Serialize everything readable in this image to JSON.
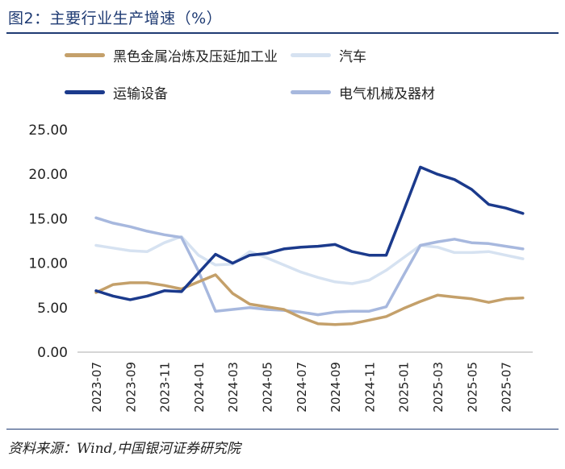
{
  "header": {
    "title": "图2：主要行业生产增速（%）"
  },
  "footer": {
    "source": "资料来源：Wind,中国银河证券研究院"
  },
  "chart_data": {
    "type": "line",
    "title": "图2：主要行业生产增速（%）",
    "x": [
      "2023-07",
      "2023-08",
      "2023-09",
      "2023-10",
      "2023-11",
      "2023-12",
      "2024-01",
      "2024-02",
      "2024-03",
      "2024-04",
      "2024-05",
      "2024-06",
      "2024-07",
      "2024-08",
      "2024-09",
      "2024-10",
      "2024-11",
      "2024-12",
      "2025-01",
      "2025-02",
      "2025-03",
      "2025-04",
      "2025-05",
      "2025-06",
      "2025-07",
      "2025-08"
    ],
    "x_tick_labels": [
      "2023-07",
      "2023-09",
      "2023-11",
      "2024-01",
      "2024-03",
      "2024-05",
      "2024-07",
      "2024-09",
      "2024-11",
      "2025-01",
      "2025-03",
      "2025-05",
      "2025-07"
    ],
    "x_tick_indices": [
      0,
      2,
      4,
      6,
      8,
      10,
      12,
      14,
      16,
      18,
      20,
      22,
      24
    ],
    "y_tick_labels": [
      "0.00",
      "5.00",
      "10.00",
      "15.00",
      "20.00",
      "25.00"
    ],
    "ylim": [
      0,
      25
    ],
    "grid": false,
    "legend_position": "top",
    "series": [
      {
        "name": "黑色金属冶炼及压延加工业",
        "color": "#c4a06a",
        "values": [
          6.7,
          7.6,
          7.8,
          7.8,
          7.5,
          7.1,
          7.9,
          8.7,
          6.6,
          5.4,
          5.1,
          4.8,
          3.9,
          3.2,
          3.1,
          3.2,
          3.6,
          4.0,
          4.9,
          5.7,
          6.4,
          6.2,
          6.0,
          5.6,
          6.0,
          6.1
        ]
      },
      {
        "name": "汽车",
        "color": "#d6e2f1",
        "values": [
          12.0,
          11.7,
          11.4,
          11.3,
          12.3,
          13.0,
          10.9,
          9.8,
          9.9,
          11.3,
          10.6,
          9.8,
          9.0,
          8.4,
          7.9,
          7.7,
          8.1,
          9.2,
          10.6,
          12.0,
          11.8,
          11.2,
          11.2,
          11.3,
          10.9,
          10.5
        ]
      },
      {
        "name": "运输设备",
        "color": "#1b3a8c",
        "values": [
          6.9,
          6.3,
          5.9,
          6.3,
          6.9,
          6.8,
          8.9,
          11.0,
          10.0,
          10.9,
          11.1,
          11.6,
          11.8,
          11.9,
          12.1,
          11.3,
          10.9,
          10.9,
          15.8,
          20.8,
          20.0,
          19.4,
          18.3,
          16.6,
          16.2,
          15.6
        ]
      },
      {
        "name": "电气机械及器材",
        "color": "#a7b8de",
        "values": [
          15.1,
          14.5,
          14.1,
          13.6,
          13.2,
          12.9,
          9.1,
          4.6,
          4.8,
          5.0,
          4.8,
          4.7,
          4.5,
          4.2,
          4.5,
          4.6,
          4.6,
          5.1,
          8.6,
          12.0,
          12.4,
          12.7,
          12.3,
          12.2,
          11.9,
          11.6
        ]
      }
    ]
  }
}
